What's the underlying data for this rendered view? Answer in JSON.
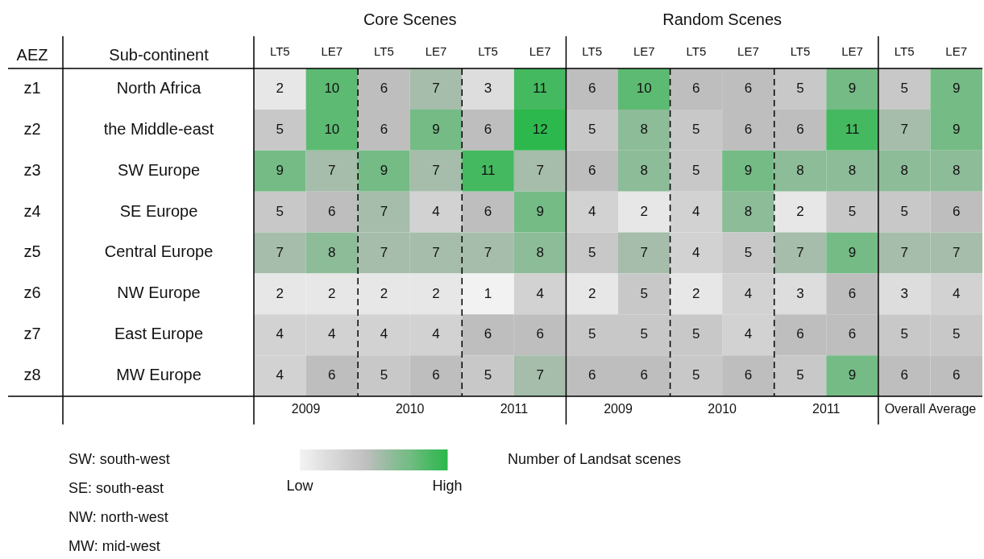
{
  "chart_data": {
    "type": "heatmap",
    "clabel": "Number of Landsat scenes",
    "categories": [
      "LT5",
      "LE7",
      "LT5",
      "LE7",
      "LT5",
      "LE7",
      "LT5",
      "LE7",
      "LT5",
      "LE7",
      "LT5",
      "LE7",
      "LT5",
      "LE7"
    ],
    "y_categories": [
      "North Africa",
      "the Middle-east",
      "SW Europe",
      "SE Europe",
      "Central Europe",
      "NW Europe",
      "East Europe",
      "MW Europe"
    ],
    "y2_categories": [
      "z1",
      "z2",
      "z3",
      "z4",
      "z5",
      "z6",
      "z7",
      "z8"
    ],
    "cells": [
      [
        2,
        10,
        6,
        7,
        3,
        11,
        6,
        10,
        6,
        6,
        5,
        9,
        5,
        9
      ],
      [
        5,
        10,
        6,
        9,
        6,
        12,
        5,
        8,
        5,
        6,
        6,
        11,
        7,
        9
      ],
      [
        9,
        7,
        9,
        7,
        11,
        7,
        6,
        8,
        5,
        9,
        8,
        8,
        8,
        8
      ],
      [
        5,
        6,
        7,
        4,
        6,
        9,
        4,
        2,
        4,
        8,
        2,
        5,
        5,
        6
      ],
      [
        7,
        8,
        7,
        7,
        7,
        8,
        5,
        7,
        4,
        5,
        7,
        9,
        7,
        7
      ],
      [
        2,
        2,
        2,
        2,
        1,
        4,
        2,
        5,
        2,
        4,
        3,
        6,
        3,
        4
      ],
      [
        4,
        4,
        4,
        4,
        6,
        6,
        5,
        5,
        5,
        4,
        6,
        6,
        5,
        5
      ],
      [
        4,
        6,
        5,
        6,
        5,
        7,
        6,
        6,
        5,
        6,
        5,
        9,
        6,
        6
      ]
    ],
    "clim": [
      1,
      12
    ],
    "cticks": [
      {
        "value": 1,
        "label": "Low"
      },
      {
        "value": 12,
        "label": "High"
      }
    ],
    "data_labels": true,
    "annotations": [
      "AEZ",
      "Sub-continent",
      "Core Scenes",
      "Random Scenes",
      "2009",
      "2010",
      "2011",
      "2009",
      "2010",
      "2011",
      "Overall Average",
      "SW: south-west",
      "SE: south-east",
      "NW: north-west",
      "MW: mid-west"
    ]
  }
}
